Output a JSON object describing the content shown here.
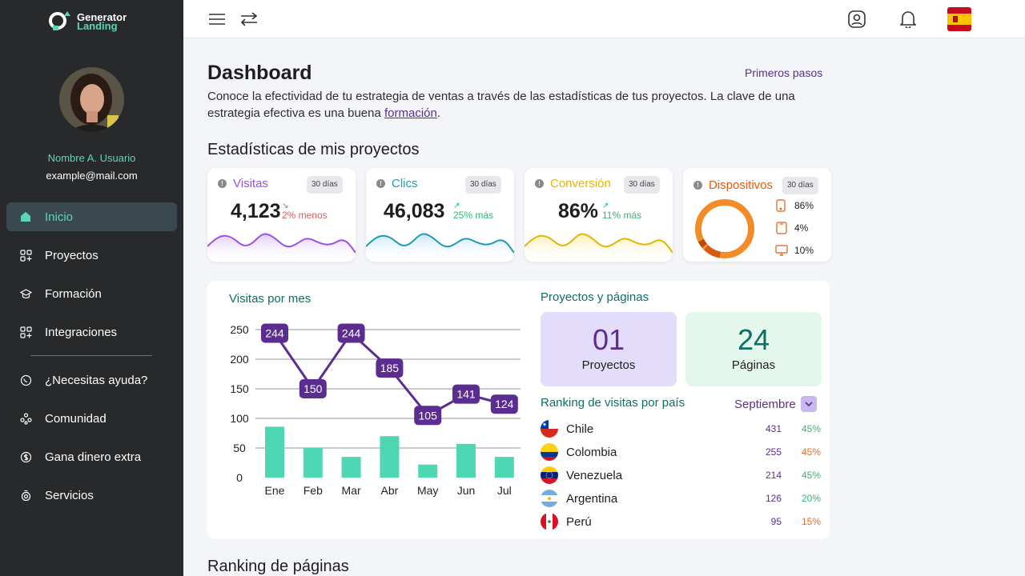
{
  "brand": {
    "line1": "Generator",
    "line2": "Landing"
  },
  "user": {
    "name": "Nombre A. Usuario",
    "email": "example@mail.com"
  },
  "nav": {
    "items": [
      {
        "label": "Inicio",
        "icon": "home-icon"
      },
      {
        "label": "Proyectos",
        "icon": "grid-plus-icon"
      },
      {
        "label": "Formación",
        "icon": "graduation-cap-icon"
      },
      {
        "label": "Integraciones",
        "icon": "grid-plus-icon"
      }
    ],
    "secondary": [
      {
        "label": "¿Necesitas ayuda?",
        "icon": "whatsapp-icon"
      },
      {
        "label": "Comunidad",
        "icon": "community-icon"
      },
      {
        "label": "Gana dinero extra",
        "icon": "money-icon"
      },
      {
        "label": "Servicios",
        "icon": "services-icon"
      }
    ]
  },
  "header": {
    "title": "Dashboard",
    "first_steps": "Primeros pasos",
    "intro_text": "Conoce la efectividad de tu estrategia de ventas a través de las estadísticas de tus proyectos. La clave de una estrategia efectiva es una buena ",
    "intro_link": "formación",
    "intro_end": "."
  },
  "stats": {
    "section_title": "Estadísticas de mis proyectos",
    "period": "30 días",
    "cards": [
      {
        "label": "Visitas",
        "value": "4,123",
        "delta": "2% menos",
        "color": "#9b51e0"
      },
      {
        "label": "Clics",
        "value": "46,083",
        "delta": "25% más",
        "color": "#1a9cb0"
      },
      {
        "label": "Conversión",
        "value": "86%",
        "delta": "11% más",
        "color": "#e6b400"
      }
    ],
    "devices": {
      "label": "Dispositivos",
      "items": [
        {
          "icon": "phone-icon",
          "pct": "86%"
        },
        {
          "icon": "tablet-icon",
          "pct": "4%"
        },
        {
          "icon": "desktop-icon",
          "pct": "10%"
        }
      ]
    }
  },
  "chart_data": {
    "type": "bar",
    "title": "Visitas por mes",
    "categories": [
      "Ene",
      "Feb",
      "Mar",
      "Abr",
      "May",
      "Jun",
      "Jul"
    ],
    "series": [
      {
        "type": "line",
        "values": [
          244,
          150,
          244,
          185,
          105,
          141,
          124
        ]
      },
      {
        "type": "bar",
        "values": [
          86,
          50,
          35,
          70,
          22,
          57,
          35
        ]
      }
    ],
    "yticks": [
      0,
      50,
      100,
      150,
      200,
      250
    ],
    "ylim": [
      0,
      250
    ],
    "colors": {
      "line": "#5c2d91",
      "bar": "#4fd6b3"
    }
  },
  "projects": {
    "title": "Proyectos y páginas",
    "projects_count": "01",
    "projects_label": "Proyectos",
    "pages_count": "24",
    "pages_label": "Páginas"
  },
  "ranking": {
    "title": "Ranking de visitas por país",
    "month": "Septiembre",
    "rows": [
      {
        "country": "Chile",
        "count": "431",
        "pct": "45%",
        "pct_color": "#2eb872"
      },
      {
        "country": "Colombia",
        "count": "255",
        "pct": "45%",
        "pct_color": "#f06a1d"
      },
      {
        "country": "Venezuela",
        "count": "214",
        "pct": "45%",
        "pct_color": "#2eb872"
      },
      {
        "country": "Argentina",
        "count": "126",
        "pct": "20%",
        "pct_color": "#2eb872"
      },
      {
        "country": "Perú",
        "count": "95",
        "pct": "15%",
        "pct_color": "#f06a1d"
      }
    ]
  },
  "pages_section_title": "Ranking de páginas"
}
